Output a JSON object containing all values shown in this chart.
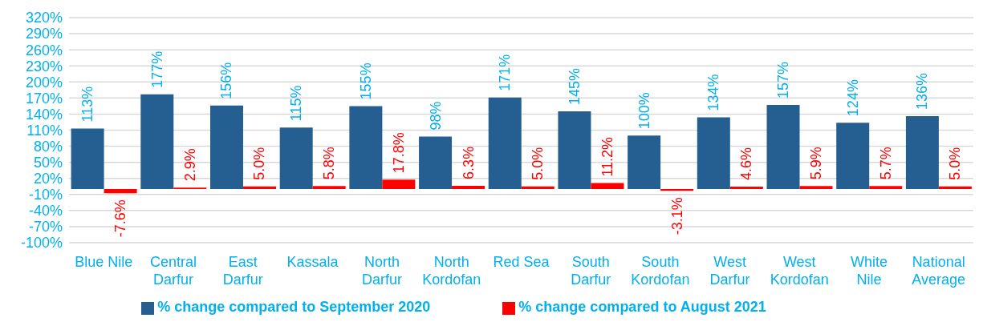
{
  "chart_data": {
    "type": "bar",
    "categories": [
      "Blue Nile",
      "Central Darfur",
      "East Darfur",
      "Kassala",
      "North Darfur",
      "North Kordofan",
      "Red Sea",
      "South Darfur",
      "South Kordofan",
      "West Darfur",
      "West Kordofan",
      "White Nile",
      "National Average"
    ],
    "series": [
      {
        "name": "% change compared to September 2020",
        "color": "#255e91",
        "values": [
          113,
          177,
          156,
          115,
          155,
          98,
          171,
          145,
          100,
          134,
          157,
          124,
          136
        ],
        "value_labels": [
          "113%",
          "177%",
          "156%",
          "115%",
          "155%",
          "98%",
          "171%",
          "145%",
          "100%",
          "134%",
          "157%",
          "124%",
          "136%"
        ]
      },
      {
        "name": "% change compared to August 2021",
        "color": "#ff0000",
        "values": [
          -7.6,
          2.9,
          5.0,
          5.8,
          17.8,
          6.3,
          5.0,
          11.2,
          -3.1,
          4.6,
          5.9,
          5.7,
          5.0
        ],
        "value_labels": [
          "-7.6%",
          "2.9%",
          "5.0%",
          "5.8%",
          "17.8%",
          "6.3%",
          "5.0%",
          "11.2%",
          "-3.1%",
          "4.6%",
          "5.9%",
          "5.7%",
          "5.0%"
        ]
      }
    ],
    "ylim": [
      -100,
      320
    ],
    "yticks": [
      {
        "value": -100,
        "label": "-100%"
      },
      {
        "value": -70,
        "label": "-70%"
      },
      {
        "value": -40,
        "label": "-40%"
      },
      {
        "value": -10,
        "label": "-10%"
      },
      {
        "value": 20,
        "label": "20%"
      },
      {
        "value": 50,
        "label": "50%"
      },
      {
        "value": 80,
        "label": "80%"
      },
      {
        "value": 110,
        "label": "110%"
      },
      {
        "value": 140,
        "label": "140%"
      },
      {
        "value": 170,
        "label": "170%"
      },
      {
        "value": 200,
        "label": "200%"
      },
      {
        "value": 230,
        "label": "230%"
      },
      {
        "value": 260,
        "label": "260%"
      },
      {
        "value": 290,
        "label": "290%"
      },
      {
        "value": 320,
        "label": "320%"
      }
    ],
    "grid": "y",
    "legend": "bottom"
  }
}
